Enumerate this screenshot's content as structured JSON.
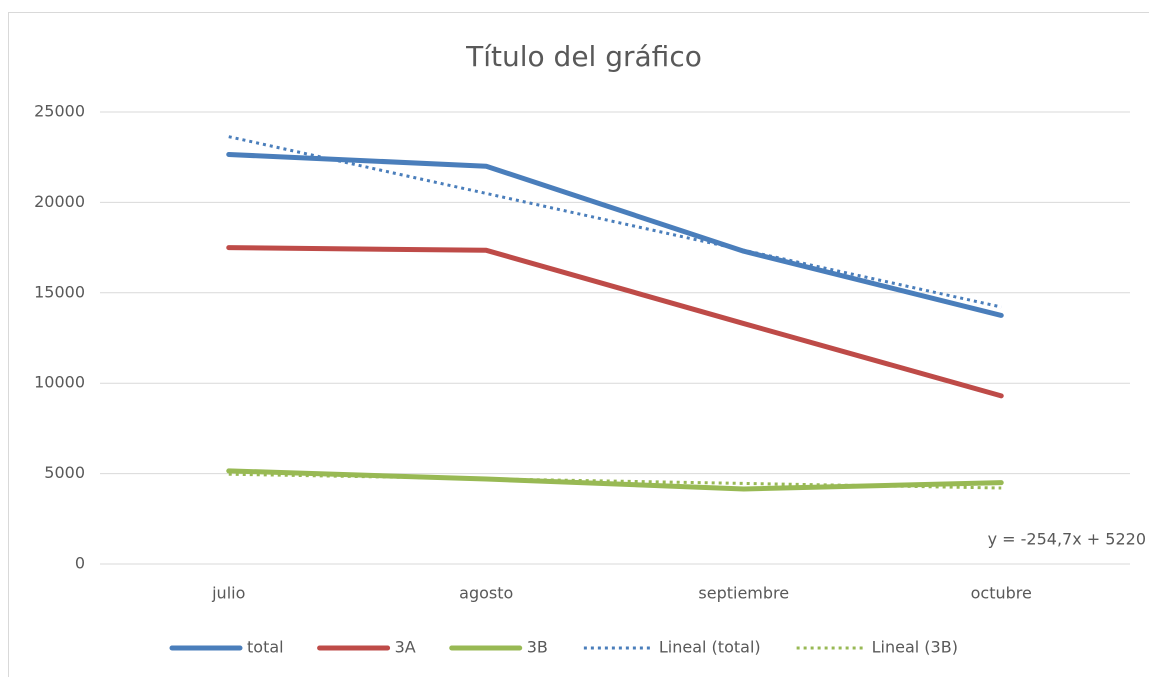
{
  "chart_data": {
    "type": "line",
    "title": "Título del gráfico",
    "categories": [
      "julio",
      "agosto",
      "septiembre",
      "octubre"
    ],
    "series": [
      {
        "name": "total",
        "color": "#4a7ebb",
        "line_style": "solid",
        "values": [
          22650,
          22000,
          17300,
          13750
        ]
      },
      {
        "name": "3A",
        "color": "#be4b48",
        "line_style": "solid",
        "values": [
          17500,
          17350,
          13300,
          9300
        ]
      },
      {
        "name": "3B",
        "color": "#98b954",
        "line_style": "solid",
        "values": [
          5150,
          4700,
          4150,
          4500
        ]
      },
      {
        "name": "Lineal (total)",
        "color": "#4a7ebb",
        "line_style": "dotted",
        "values": [
          23635,
          20495,
          17355,
          14215
        ]
      },
      {
        "name": "Lineal (3B)",
        "color": "#98b954",
        "line_style": "dotted",
        "values": [
          4965.3,
          4710.6,
          4455.9,
          4201.2
        ]
      }
    ],
    "annotation": "y = -254,7x + 5220",
    "ylim": [
      0,
      25000
    ],
    "yticks": [
      0,
      5000,
      10000,
      15000,
      20000,
      25000
    ],
    "grid": true,
    "legend": "bottom"
  }
}
